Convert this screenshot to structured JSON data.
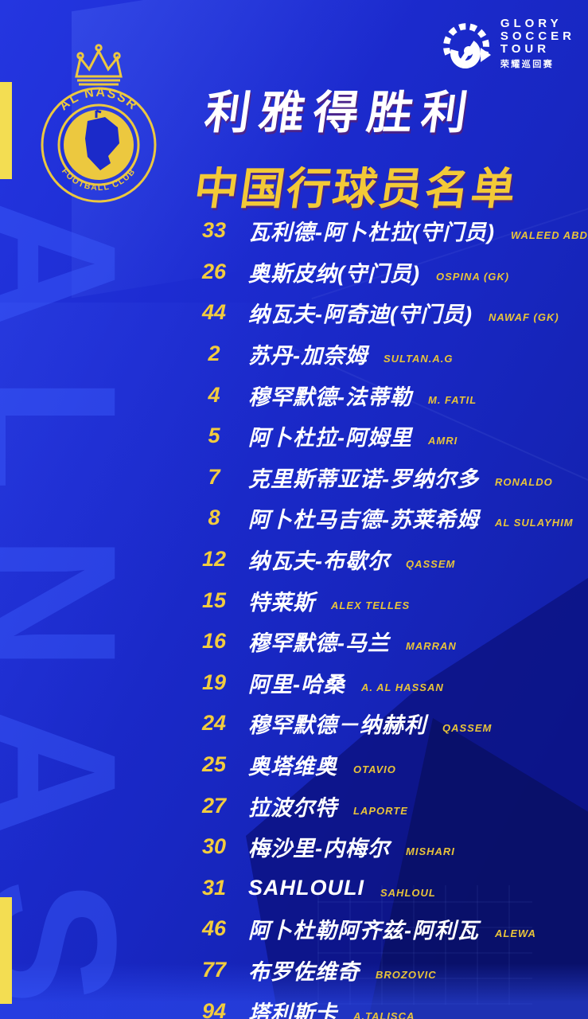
{
  "brand": {
    "crest_top": "AL NASSR",
    "crest_bottom": "FOOTBALL CLUB",
    "glory_lines": [
      "GLORY",
      "SOCCER",
      "TOUR"
    ],
    "glory_cn": "荣耀巡回赛"
  },
  "title": {
    "line1": "利雅得胜利",
    "line2": "中国行球员名单"
  },
  "watermark": {
    "letters": [
      "A",
      "L",
      "N",
      "A",
      "S"
    ]
  },
  "players": [
    {
      "number": "33",
      "name_cn": "瓦利德-阿卜杜拉(守门员)",
      "name_en": "WALEED ABDALLAH (GK)"
    },
    {
      "number": "26",
      "name_cn": "奥斯皮纳(守门员)",
      "name_en": "OSPINA (GK)"
    },
    {
      "number": "44",
      "name_cn": "纳瓦夫-阿奇迪(守门员)",
      "name_en": "NAWAF (GK)"
    },
    {
      "number": "2",
      "name_cn": "苏丹-加奈姆",
      "name_en": "SULTAN.A.G"
    },
    {
      "number": "4",
      "name_cn": "穆罕默德-法蒂勒",
      "name_en": "M. FATIL"
    },
    {
      "number": "5",
      "name_cn": "阿卜杜拉-阿姆里",
      "name_en": "AMRI"
    },
    {
      "number": "7",
      "name_cn": "克里斯蒂亚诺-罗纳尔多",
      "name_en": "RONALDO"
    },
    {
      "number": "8",
      "name_cn": "阿卜杜马吉德-苏莱希姆",
      "name_en": "AL SULAYHIM"
    },
    {
      "number": "12",
      "name_cn": "纳瓦夫-布歇尔",
      "name_en": "QASSEM"
    },
    {
      "number": "15",
      "name_cn": "特莱斯",
      "name_en": "ALEX TELLES"
    },
    {
      "number": "16",
      "name_cn": "穆罕默德-马兰",
      "name_en": "MARRAN"
    },
    {
      "number": "19",
      "name_cn": "阿里-哈桑",
      "name_en": "A. AL HASSAN"
    },
    {
      "number": "24",
      "name_cn": "穆罕默德－纳赫利",
      "name_en": "QASSEM"
    },
    {
      "number": "25",
      "name_cn": "奥塔维奥",
      "name_en": "OTAVIO"
    },
    {
      "number": "27",
      "name_cn": "拉波尔特",
      "name_en": "LAPORTE"
    },
    {
      "number": "30",
      "name_cn": "梅沙里-内梅尔",
      "name_en": "MISHARI"
    },
    {
      "number": "31",
      "name_cn": "SAHLOULI",
      "name_en": "SAHLOUL"
    },
    {
      "number": "46",
      "name_cn": "阿卜杜勒阿齐兹-阿利瓦",
      "name_en": "ALEWA"
    },
    {
      "number": "77",
      "name_cn": "布罗佐维奇",
      "name_en": "BROZOVIC"
    },
    {
      "number": "94",
      "name_cn": "塔利斯卡",
      "name_en": "A.TALISCA"
    }
  ],
  "colors": {
    "background_blue": "#1c2bd0",
    "dark_facet_blue": "#0c1384",
    "watermark_blue": "#3e60ff",
    "accent_yellow": "#f2cc3e",
    "edge_bar_yellow": "#f3dd52",
    "title_yellow": "#f3c937",
    "white": "#ffffff"
  }
}
